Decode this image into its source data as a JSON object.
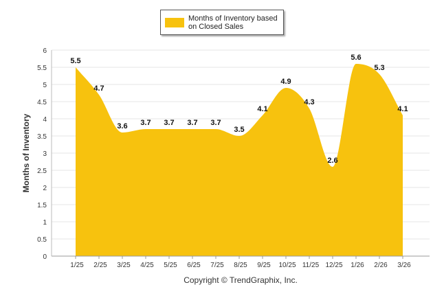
{
  "chart_data": {
    "type": "area",
    "title": "",
    "xlabel": "",
    "ylabel": "Months of Inventory",
    "ylim": [
      0,
      6
    ],
    "yticks": [
      "0",
      "0.5",
      "1",
      "1.5",
      "2",
      "2.5",
      "3",
      "3.5",
      "4",
      "4.5",
      "5",
      "5.5",
      "6"
    ],
    "categories": [
      "1/25",
      "2/25",
      "3/25",
      "4/25",
      "5/25",
      "6/25",
      "7/25",
      "8/25",
      "9/25",
      "10/25",
      "11/25",
      "12/25",
      "1/26",
      "2/26",
      "3/26"
    ],
    "series": [
      {
        "name": "Months of Inventory based on Closed Sales",
        "values": [
          5.5,
          4.7,
          3.6,
          3.7,
          3.7,
          3.7,
          3.7,
          3.5,
          4.1,
          4.9,
          4.3,
          2.6,
          5.6,
          5.3,
          4.1
        ],
        "color": "#F7C20E"
      }
    ],
    "data_labels": [
      "5.5",
      "4.7",
      "3.6",
      "3.7",
      "3.7",
      "3.7",
      "3.7",
      "3.5",
      "4.1",
      "4.9",
      "4.3",
      "2.6",
      "5.6",
      "5.3",
      "4.1"
    ],
    "grid": true,
    "legend_position": "top-center"
  },
  "legend": {
    "label": "Months of Inventory based\non Closed Sales"
  },
  "footer": {
    "copyright": "Copyright © TrendGraphix, Inc."
  }
}
